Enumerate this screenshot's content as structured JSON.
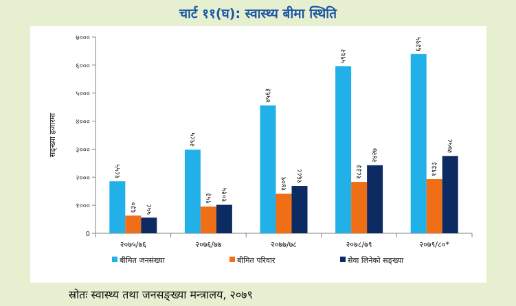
{
  "title": "चार्ट ११(घ): स्वास्थ्य बीमा स्थिति",
  "source": "स्रोतः स्वास्थ्य तथा जनसङ्ख्या मन्त्रालय, २०७९",
  "chart_data": {
    "type": "bar",
    "title": "चार्ट ११(घ): स्वास्थ्य बीमा स्थिति",
    "ylabel": "सङ्ख्या हजारमा",
    "xlabel": "",
    "ylim": [
      0,
      7000
    ],
    "yticks": [
      0,
      1000,
      2000,
      3000,
      4000,
      5000,
      6000,
      7000
    ],
    "ytick_labels": [
      "0",
      "१०००",
      "२०००",
      "३०००",
      "४०००",
      "५०००",
      "६०००",
      "७०००"
    ],
    "categories": [
      "२०७५/७६",
      "२०७६/७७",
      "२०७७/७८",
      "२०७८/७९",
      "२०७९/८०*"
    ],
    "series": [
      {
        "name": "बीमित जनसंख्या",
        "color": "#21b1e8",
        "values": [
          1855,
          2985,
          4563,
          5962,
          6395
        ],
        "labels": [
          "१८५५",
          "२९८५",
          "४५६३",
          "५९६२",
          "६३९५"
        ]
      },
      {
        "name": "बीमित परिवार",
        "color": "#ef6e16",
        "values": [
          630,
          953,
          1409,
          1833,
          1933
        ],
        "labels": [
          "६३०",
          "९५३",
          "१४०९",
          "१८३३",
          "१९३३"
        ]
      },
      {
        "name": "सेवा लिनेको सङ्ख्या",
        "color": "#0d2b63",
        "values": [
          558,
          1015,
          1688,
          2427,
          2758
        ],
        "labels": [
          "५५८",
          "१०१५",
          "१६८८",
          "२४२७",
          "२७५८"
        ]
      }
    ],
    "grid": false,
    "legend_position": "bottom"
  }
}
